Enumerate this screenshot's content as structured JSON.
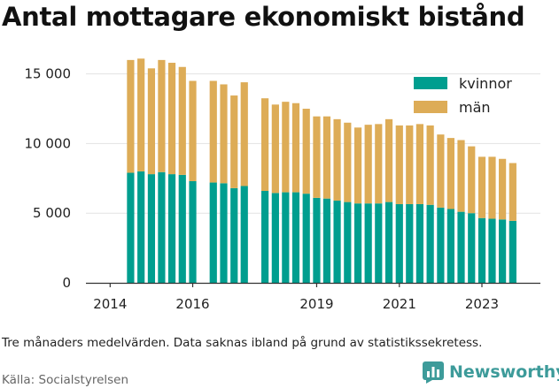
{
  "colors": {
    "kvinnor": "#009e8f",
    "man": "#ddac57",
    "grid": "#e3e3e3",
    "axis": "#333333",
    "brand": "#3d9b9a"
  },
  "texts": {
    "title": "Antal mottagare ekonomiskt bistånd",
    "note": "Tre månaders medelvärden. Data saknas ibland på grund av statistikssekretess.",
    "source": "Källa: Socialstyrelsen",
    "brand": "Newsworthy"
  },
  "brand_icon": "bar-chart-icon",
  "chart_data": {
    "type": "bar",
    "stacked": true,
    "title": "Antal mottagare ekonomiskt bistånd",
    "xlabel": "",
    "ylabel": "",
    "ylim": [
      0,
      16500
    ],
    "yticks": [
      0,
      5000,
      10000,
      15000
    ],
    "ytick_labels": [
      "0",
      "5 000",
      "10 000",
      "15 000"
    ],
    "xticks": [
      "2014",
      "2016",
      "2019",
      "2021",
      "2023"
    ],
    "grid": true,
    "legend_position": "top-right",
    "x": [
      "2014-07",
      "2014-10",
      "2015-01",
      "2015-04",
      "2015-07",
      "2015-10",
      "2016-01",
      "2016-07",
      "2016-10",
      "2017-01",
      "2017-04",
      "2017-10",
      "2018-01",
      "2018-04",
      "2018-07",
      "2018-10",
      "2019-01",
      "2019-04",
      "2019-07",
      "2019-10",
      "2020-01",
      "2020-04",
      "2020-07",
      "2020-10",
      "2021-01",
      "2021-04",
      "2021-07",
      "2021-10",
      "2022-01",
      "2022-04",
      "2022-07",
      "2022-10",
      "2023-01",
      "2023-04",
      "2023-07",
      "2023-10"
    ],
    "series": [
      {
        "name": "kvinnor",
        "values": [
          7900,
          8000,
          7800,
          7950,
          7800,
          7750,
          7300,
          7200,
          7150,
          6800,
          6950,
          6600,
          6450,
          6500,
          6500,
          6400,
          6100,
          6050,
          5900,
          5800,
          5700,
          5700,
          5700,
          5800,
          5650,
          5650,
          5650,
          5600,
          5400,
          5300,
          5100,
          5000,
          4650,
          4600,
          4550,
          4450
        ]
      },
      {
        "name": "män",
        "values": [
          8100,
          8100,
          7600,
          8050,
          8000,
          7750,
          7200,
          7300,
          7100,
          6650,
          7450,
          6650,
          6350,
          6500,
          6400,
          6100,
          5850,
          5900,
          5850,
          5700,
          5450,
          5650,
          5700,
          5950,
          5650,
          5650,
          5750,
          5700,
          5250,
          5100,
          5150,
          4800,
          4400,
          4450,
          4350,
          4150
        ]
      }
    ]
  }
}
